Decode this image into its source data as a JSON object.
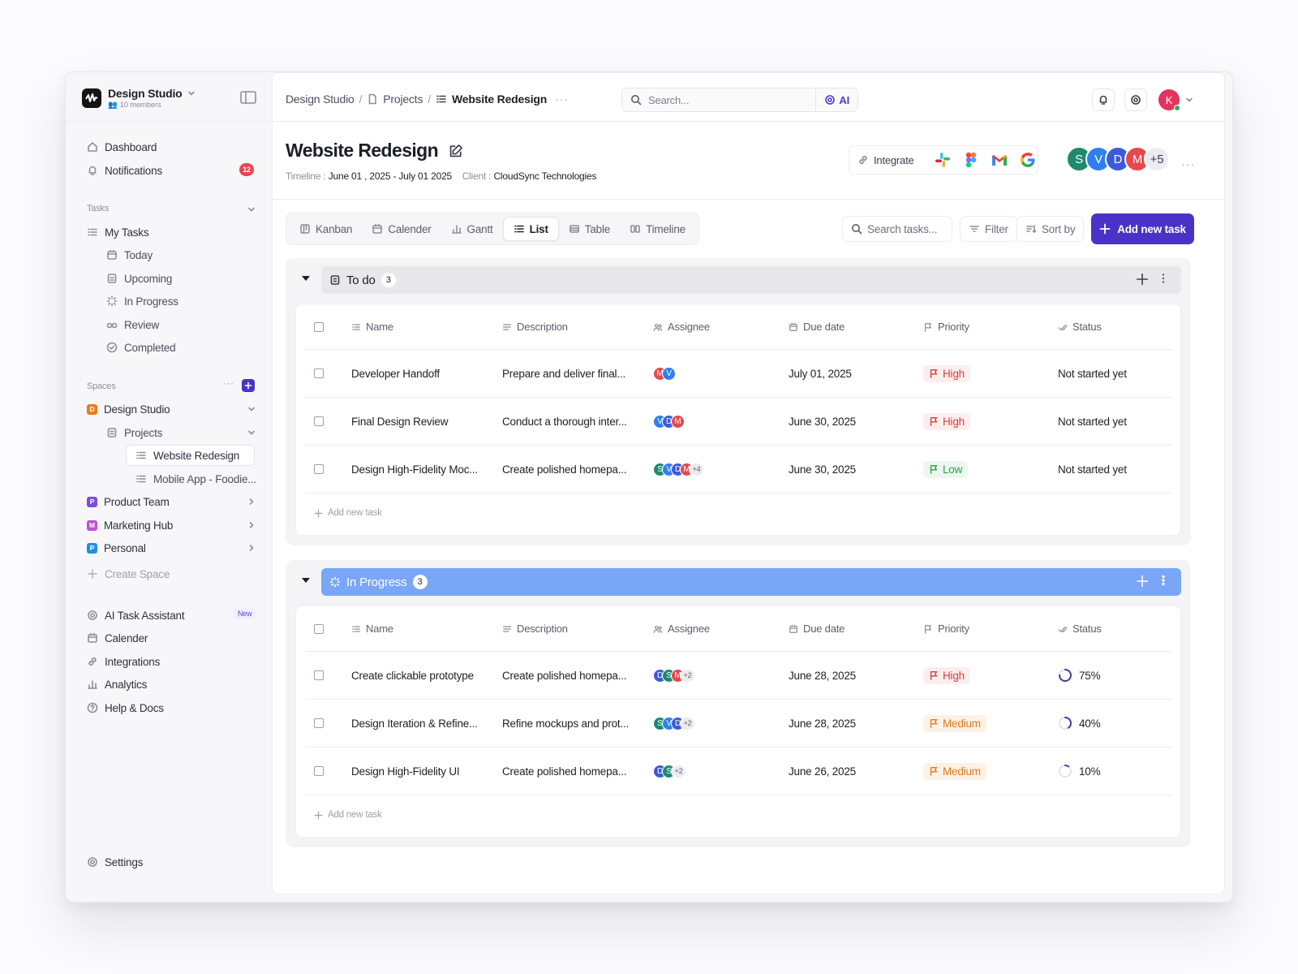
{
  "workspace": {
    "name": "Design Studio",
    "members": "10 members"
  },
  "sidebar": {
    "dashboard": "Dashboard",
    "notifications": "Notifications",
    "notifications_count": "12",
    "tasks_label": "Tasks",
    "my_tasks": "My Tasks",
    "task_filters": [
      "Today",
      "Upcoming",
      "In Progress",
      "Review",
      "Completed"
    ],
    "spaces_label": "Spaces",
    "spaces_more": "···",
    "space_design": {
      "letter": "D",
      "label": "Design Studio",
      "color": "#f07a1a"
    },
    "projects": "Projects",
    "project_items": [
      "Website Redesign",
      "Mobile App  - Foodie..."
    ],
    "space_product": {
      "letter": "P",
      "label": "Product Team",
      "color": "#7c4ddb"
    },
    "space_marketing": {
      "letter": "M",
      "label": "Marketing Hub",
      "color": "#c44dd6"
    },
    "space_personal": {
      "letter": "P",
      "label": "Personal",
      "color": "#1f8fe6"
    },
    "create_space": "Create Space",
    "ai_assistant": "AI Task Assistant",
    "new_badge": "New",
    "calender": "Calender",
    "integrations": "Integrations",
    "analytics": "Analytics",
    "help": "Help & Docs",
    "settings": "Settings"
  },
  "header": {
    "crumbs": [
      "Design Studio",
      "Projects",
      "Website Redesign"
    ],
    "crumb_more": "···",
    "search_placeholder": "Search...",
    "ai_label": "AI",
    "user_initial": "K"
  },
  "project": {
    "title": "Website Redesign",
    "timeline_label": "Timeline : ",
    "timeline": "June 01 , 2025 - July 01 2025",
    "client_label": "Client : ",
    "client": "CloudSync Technologies",
    "integrate": "Integrate",
    "team": [
      {
        "initial": "S",
        "color": "#1f8a6f"
      },
      {
        "initial": "V",
        "color": "#2f80ed"
      },
      {
        "initial": "D",
        "color": "#3b5bdb"
      },
      {
        "initial": "M",
        "color": "#e5484d"
      }
    ],
    "team_more": "+5",
    "more": "···"
  },
  "views": {
    "tabs": [
      "Kanban",
      "Calender",
      "Gantt",
      "List",
      "Table",
      "Timeline"
    ],
    "active": "List",
    "search_tasks": "Search tasks...",
    "filter": "Filter",
    "sort": "Sort by",
    "add_task": "Add new task"
  },
  "columns": [
    "Name",
    "Description",
    "Assignee",
    "Due date",
    "Priority",
    "Status"
  ],
  "groups": [
    {
      "name": "To do",
      "count": "3",
      "add_row": "Add new task",
      "tasks": [
        {
          "name": "Developer Handoff",
          "description": "Prepare and deliver final...",
          "assignees": [
            {
              "i": "M",
              "c": "#e5484d"
            },
            {
              "i": "V",
              "c": "#2f80ed"
            }
          ],
          "more": "",
          "due": "July 01, 2025",
          "priority": "High",
          "status": "Not started yet"
        },
        {
          "name": "Final Design Review",
          "description": "Conduct a thorough inter...",
          "assignees": [
            {
              "i": "V",
              "c": "#2f80ed"
            },
            {
              "i": "D",
              "c": "#3b5bdb"
            },
            {
              "i": "M",
              "c": "#e5484d"
            }
          ],
          "more": "",
          "due": "June 30, 2025",
          "priority": "High",
          "status": "Not started yet"
        },
        {
          "name": "Design High-Fidelity Moc...",
          "description": "Create polished homepa...",
          "assignees": [
            {
              "i": "S",
              "c": "#1f8a6f"
            },
            {
              "i": "V",
              "c": "#2f80ed"
            },
            {
              "i": "D",
              "c": "#3b5bdb"
            },
            {
              "i": "M",
              "c": "#e5484d"
            }
          ],
          "more": "+4",
          "due": "June 30, 2025",
          "priority": "Low",
          "status": "Not started yet"
        }
      ]
    },
    {
      "name": "In Progress",
      "count": "3",
      "add_row": "Add new task",
      "tasks": [
        {
          "name": "Create clickable prototype",
          "description": "Create polished homepa...",
          "assignees": [
            {
              "i": "D",
              "c": "#3b5bdb"
            },
            {
              "i": "S",
              "c": "#1f8a6f"
            },
            {
              "i": "M",
              "c": "#e5484d"
            }
          ],
          "more": "+2",
          "due": "June 28, 2025",
          "priority": "High",
          "status": "75%",
          "progress": 0.75
        },
        {
          "name": "Design Iteration & Refine...",
          "description": "Refine mockups and prot...",
          "assignees": [
            {
              "i": "S",
              "c": "#1f8a6f"
            },
            {
              "i": "V",
              "c": "#2f80ed"
            },
            {
              "i": "D",
              "c": "#3b5bdb"
            }
          ],
          "more": "+2",
          "due": "June 28, 2025",
          "priority": "Medium",
          "status": "40%",
          "progress": 0.4
        },
        {
          "name": "Design High-Fidelity UI",
          "description": "Create polished homepa...",
          "assignees": [
            {
              "i": "D",
              "c": "#3b5bdb"
            },
            {
              "i": "S",
              "c": "#1f8a6f"
            }
          ],
          "more": "+2",
          "due": "June 26, 2025",
          "priority": "Medium",
          "status": "10%",
          "progress": 0.1
        }
      ]
    }
  ],
  "colors": {
    "accent": "#4a32c7",
    "in_progress_header": "#79a6f6",
    "high": "#d63d3d",
    "medium": "#e07b1c",
    "low": "#2e9e4a"
  }
}
